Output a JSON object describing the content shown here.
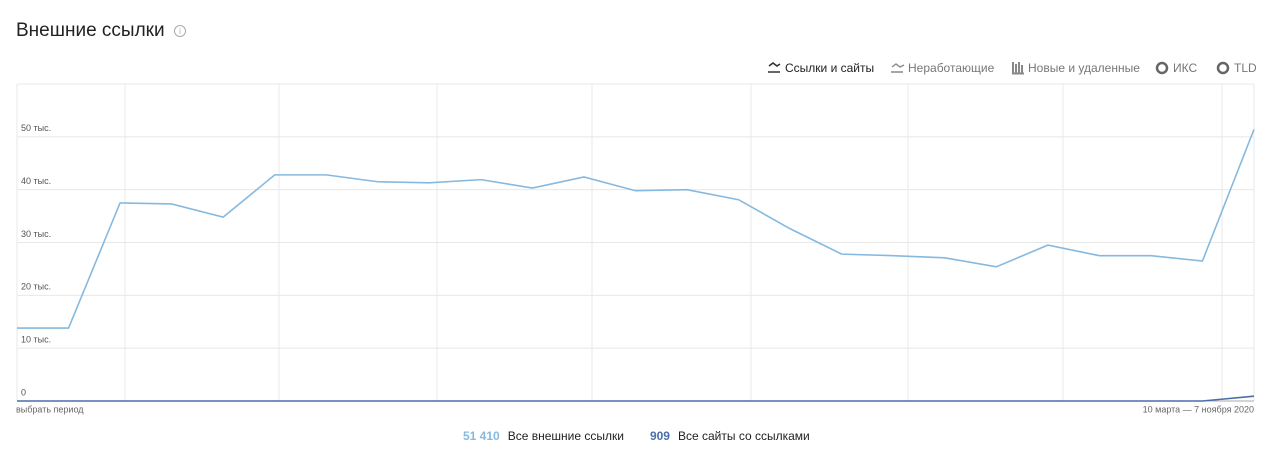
{
  "title": "Внешние ссылки",
  "tabs": [
    "Ссылки и сайты",
    "Неработающие",
    "Новые и удаленные",
    "ИКС",
    "TLD"
  ],
  "period_button": "выбрать период",
  "period_range": "10 марта — 7 ноября 2020",
  "chart_data": {
    "type": "line",
    "categories": [
      null,
      null,
      null,
      null,
      null,
      null,
      null,
      null,
      null,
      null,
      null,
      null,
      null,
      null,
      null,
      null,
      null,
      null,
      null,
      null,
      null,
      null,
      null,
      null,
      null
    ],
    "series": [
      {
        "name": "Все внешние ссылки",
        "legend_value": "51 410",
        "color": "#86b9df",
        "values": [
          13800,
          13800,
          37500,
          37300,
          34800,
          42800,
          42800,
          41500,
          41300,
          41900,
          40300,
          42400,
          39800,
          40000,
          38100,
          32600,
          27800,
          27500,
          27100,
          25400,
          29500,
          27500,
          27500,
          26500,
          51410
        ]
      },
      {
        "name": "Все сайты со ссылками",
        "legend_value": "909",
        "color": "#4a6fa8",
        "values": [
          0,
          0,
          0,
          0,
          0,
          0,
          0,
          0,
          0,
          0,
          0,
          0,
          0,
          0,
          0,
          0,
          0,
          0,
          0,
          0,
          0,
          0,
          0,
          0,
          909
        ]
      }
    ],
    "ylim": [
      0,
      60000
    ],
    "yticks": [
      0,
      {
        "value": 10000,
        "label": "10 тыс."
      },
      {
        "value": 20000,
        "label": "20 тыс."
      },
      {
        "value": 30000,
        "label": "30 тыс."
      },
      {
        "value": 40000,
        "label": "40 тыс."
      },
      {
        "value": 50000,
        "label": "50 тыс."
      }
    ],
    "grid": true
  }
}
